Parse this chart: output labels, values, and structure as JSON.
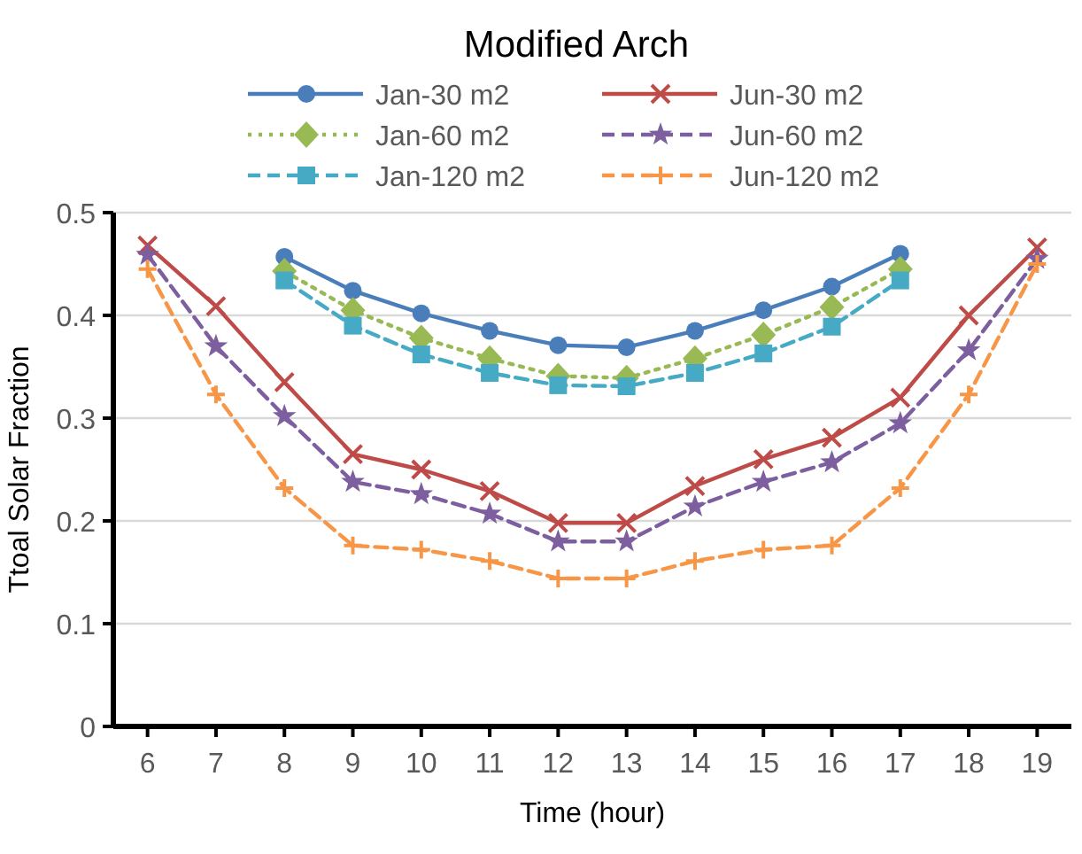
{
  "chart_data": {
    "type": "line",
    "title": "Modified Arch",
    "xlabel": "Time (hour)",
    "ylabel": "Ttoal Solar Fraction",
    "categories": [
      "6",
      "7",
      "8",
      "9",
      "10",
      "11",
      "12",
      "13",
      "14",
      "15",
      "16",
      "17",
      "18",
      "19"
    ],
    "ylim": [
      0,
      0.5
    ],
    "yticks": [
      0,
      0.1,
      0.2,
      0.3,
      0.4,
      0.5
    ],
    "grid": "y",
    "legend": "top",
    "series": [
      {
        "name": "Jan-30 m2",
        "color": "#4a7ebb",
        "marker": "circle",
        "line_style": "solid",
        "values": [
          null,
          null,
          0.457,
          0.424,
          0.402,
          0.385,
          0.371,
          0.369,
          0.385,
          0.405,
          0.428,
          0.46,
          null,
          null
        ]
      },
      {
        "name": "Jun-30 m2",
        "color": "#be4b48",
        "marker": "cross",
        "line_style": "solid",
        "values": [
          0.468,
          0.409,
          0.335,
          0.265,
          0.25,
          0.229,
          0.198,
          0.198,
          0.234,
          0.26,
          0.281,
          0.32,
          0.4,
          0.466
        ]
      },
      {
        "name": "Jan-60 m2",
        "color": "#98b954",
        "marker": "diamond",
        "line_style": "dotted",
        "values": [
          null,
          null,
          0.443,
          0.405,
          0.378,
          0.358,
          0.341,
          0.339,
          0.358,
          0.381,
          0.408,
          0.445,
          null,
          null
        ]
      },
      {
        "name": "Jun-60 m2",
        "color": "#7d5fa0",
        "marker": "star",
        "line_style": "dashed",
        "values": [
          0.459,
          0.37,
          0.302,
          0.238,
          0.226,
          0.207,
          0.18,
          0.18,
          0.214,
          0.238,
          0.257,
          0.295,
          0.366,
          0.455
        ]
      },
      {
        "name": "Jan-120 m2",
        "color": "#46aac5",
        "marker": "square",
        "line_style": "dashed",
        "values": [
          null,
          null,
          0.434,
          0.39,
          0.362,
          0.344,
          0.332,
          0.331,
          0.344,
          0.363,
          0.389,
          0.434,
          null,
          null
        ]
      },
      {
        "name": "Jun-120 m2",
        "color": "#f79646",
        "marker": "plus",
        "line_style": "dashed",
        "values": [
          0.445,
          0.323,
          0.232,
          0.176,
          0.172,
          0.161,
          0.144,
          0.144,
          0.161,
          0.172,
          0.176,
          0.232,
          0.323,
          0.45
        ]
      }
    ]
  }
}
